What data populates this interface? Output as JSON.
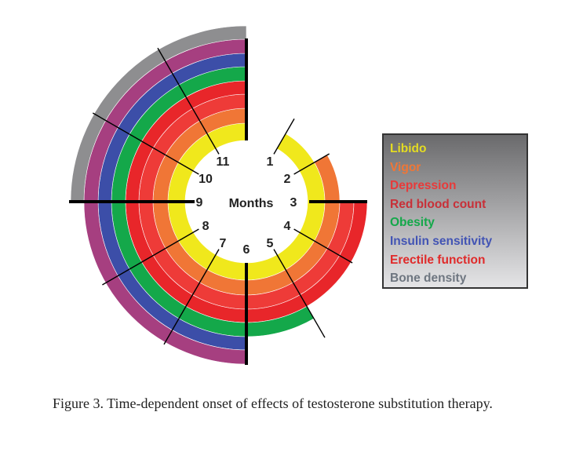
{
  "chart_data": {
    "type": "radial-onset",
    "center_label": "Months",
    "month_labels": [
      "1",
      "2",
      "3",
      "4",
      "5",
      "6",
      "7",
      "8",
      "9",
      "10",
      "11"
    ],
    "series": [
      {
        "name": "Libido",
        "onset_month": 1,
        "ring_color": "#f0e81c",
        "legend_color": "#e4dc22"
      },
      {
        "name": "Vigor",
        "onset_month": 2,
        "ring_color": "#f07636",
        "legend_color": "#f07636"
      },
      {
        "name": "Depression",
        "onset_month": 3,
        "ring_color": "#ee3b38",
        "legend_color": "#e83a3a"
      },
      {
        "name": "Red blood count",
        "onset_month": 3,
        "ring_color": "#e8262a",
        "legend_color": "#c83038"
      },
      {
        "name": "Obesity",
        "onset_month": 5,
        "ring_color": "#14a84a",
        "legend_color": "#14a84a"
      },
      {
        "name": "Insulin sensitivity",
        "onset_month": 6,
        "ring_color": "#3c4ea8",
        "legend_color": "#4254b4"
      },
      {
        "name": "Erectile function",
        "onset_month": 6,
        "ring_color": "#a63f80",
        "legend_color": "#e02a2a"
      },
      {
        "name": "Bone density",
        "onset_month": 9,
        "ring_color": "#8e8e90",
        "legend_color": "#6e7680"
      }
    ],
    "end_month": 12
  },
  "caption": "Figure 3. Time-dependent onset of effects of testosterone substitution therapy."
}
